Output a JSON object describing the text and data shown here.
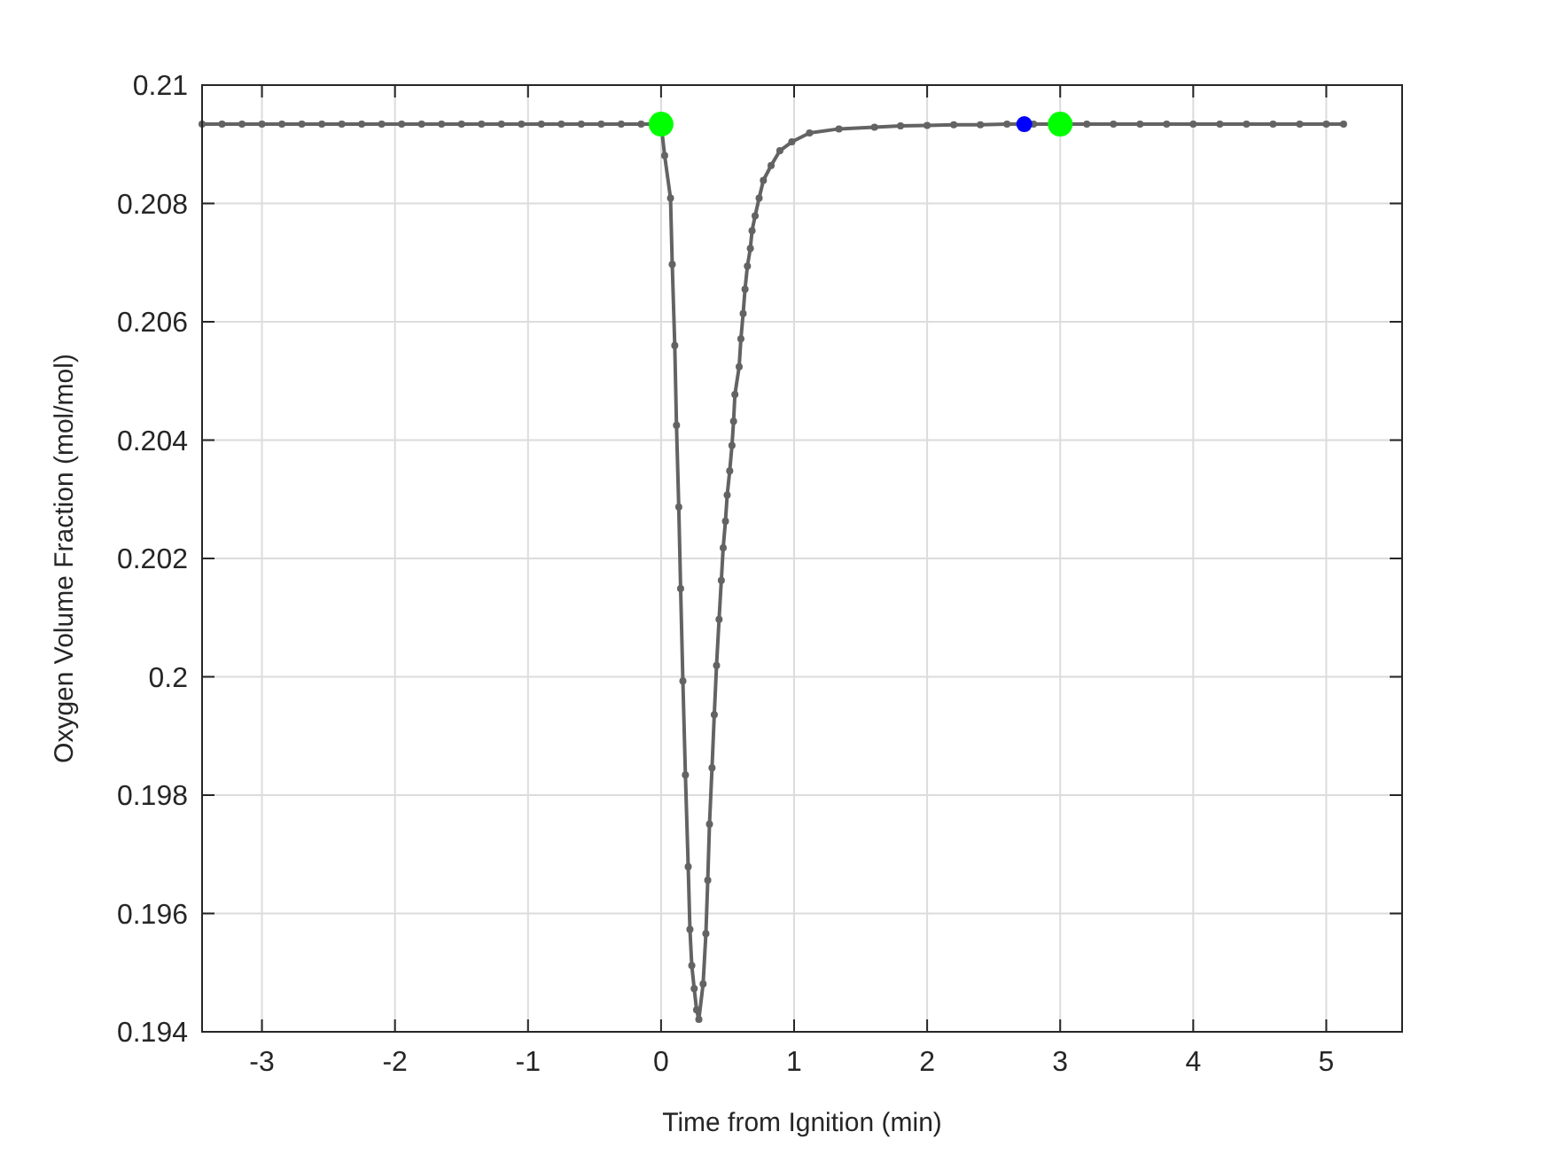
{
  "chart_data": {
    "type": "line",
    "xlabel": "Time from Ignition (min)",
    "ylabel": "Oxygen Volume Fraction (mol/mol)",
    "xlim": [
      -3.45,
      5.57
    ],
    "ylim": [
      0.194,
      0.21
    ],
    "xticks": [
      -3,
      -2,
      -1,
      0,
      1,
      2,
      3,
      4,
      5
    ],
    "yticks": [
      0.194,
      0.196,
      0.198,
      0.2,
      0.202,
      0.204,
      0.206,
      0.208,
      0.21
    ],
    "grid": true,
    "series": [
      {
        "color": "#636363",
        "marker": "circle",
        "x": [
          -3.45,
          -3.3,
          -3.15,
          -3,
          -2.85,
          -2.7,
          -2.55,
          -2.4,
          -2.25,
          -2.1,
          -1.95,
          -1.8,
          -1.65,
          -1.5,
          -1.35,
          -1.2,
          -1.05,
          -0.9,
          -0.75,
          -0.6,
          -0.45,
          -0.3,
          -0.15,
          0,
          0.027,
          0.071,
          0.084,
          0.103,
          0.116,
          0.133,
          0.147,
          0.164,
          0.183,
          0.204,
          0.217,
          0.231,
          0.249,
          0.267,
          0.284,
          0.316,
          0.337,
          0.351,
          0.364,
          0.383,
          0.4,
          0.417,
          0.436,
          0.453,
          0.467,
          0.484,
          0.497,
          0.516,
          0.533,
          0.545,
          0.555,
          0.587,
          0.6,
          0.617,
          0.631,
          0.649,
          0.671,
          0.684,
          0.707,
          0.737,
          0.769,
          0.827,
          0.893,
          0.983,
          1.116,
          1.337,
          1.604,
          1.8,
          2,
          2.2,
          2.4,
          2.6,
          2.8,
          3,
          3.2,
          3.4,
          3.6,
          3.8,
          4,
          4.2,
          4.4,
          4.6,
          4.8,
          5,
          5.13
        ],
        "values": [
          0.20934,
          0.20934,
          0.20934,
          0.20934,
          0.20934,
          0.20934,
          0.20934,
          0.20934,
          0.20934,
          0.20934,
          0.20934,
          0.20934,
          0.20934,
          0.20934,
          0.20934,
          0.20934,
          0.20934,
          0.20934,
          0.20934,
          0.20934,
          0.20934,
          0.20934,
          0.20934,
          0.20934,
          0.20881,
          0.20809,
          0.20697,
          0.2056,
          0.20425,
          0.20287,
          0.20149,
          0.19993,
          0.19834,
          0.19679,
          0.19573,
          0.19512,
          0.19473,
          0.19437,
          0.19421,
          0.19481,
          0.19566,
          0.19656,
          0.19751,
          0.19846,
          0.19936,
          0.20019,
          0.20097,
          0.20163,
          0.20218,
          0.20263,
          0.20307,
          0.20348,
          0.20391,
          0.20432,
          0.20477,
          0.20524,
          0.20571,
          0.20614,
          0.20655,
          0.20694,
          0.20724,
          0.20754,
          0.20779,
          0.20809,
          0.20839,
          0.20864,
          0.20889,
          0.20904,
          0.20919,
          0.20926,
          0.20929,
          0.20931,
          0.20932,
          0.20933,
          0.20933,
          0.20934,
          0.20934,
          0.20934,
          0.20934,
          0.20934,
          0.20934,
          0.20934,
          0.20934,
          0.20934,
          0.20934,
          0.20934,
          0.20934,
          0.20934,
          0.20934
        ]
      },
      {
        "type": "scatter",
        "color": "#00ff00",
        "marker": "circle",
        "x": [
          0,
          3
        ],
        "values": [
          0.20934,
          0.20934
        ]
      },
      {
        "type": "scatter",
        "color": "#0000ff",
        "marker": "circle",
        "x": [
          2.73
        ],
        "values": [
          0.20934
        ]
      }
    ]
  }
}
